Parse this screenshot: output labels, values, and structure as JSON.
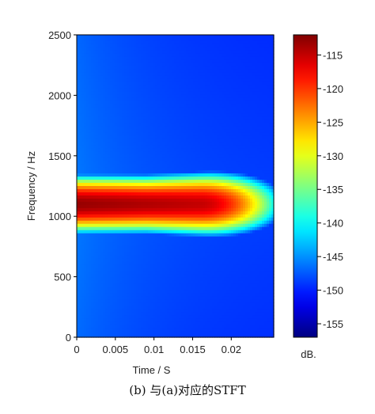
{
  "chart_data": {
    "type": "heatmap",
    "title": "",
    "xlabel": "Time / S",
    "ylabel": "Frequency / Hz",
    "xlim": [
      0,
      0.0255
    ],
    "ylim": [
      0,
      2500
    ],
    "x_ticks": [
      0,
      0.005,
      0.01,
      0.015,
      0.02
    ],
    "x_tick_labels": [
      "0",
      "0.005",
      "0.01",
      "0.015",
      "0.02"
    ],
    "y_ticks": [
      0,
      500,
      1000,
      1500,
      2000,
      2500
    ],
    "y_tick_labels": [
      "0",
      "500",
      "1000",
      "1500",
      "2000",
      "2500"
    ],
    "colorbar": {
      "min": -157,
      "max": -112,
      "ticks": [
        -115,
        -120,
        -125,
        -130,
        -135,
        -140,
        -145,
        -150,
        -155
      ],
      "tick_labels": [
        "-115",
        "-120",
        "-125",
        "-130",
        "-135",
        "-140",
        "-145",
        "-150",
        "-155"
      ],
      "unit_label": "dB.",
      "colormap": "jet"
    },
    "peak": {
      "time": 0.0,
      "frequency": 1100,
      "level_db": -113
    },
    "description_values": {
      "peak_end_time": 0.016,
      "decay_time": 0.021,
      "background_level_db": -156
    },
    "grid": false,
    "caption": "(b)  与(a)对应的STFT"
  }
}
